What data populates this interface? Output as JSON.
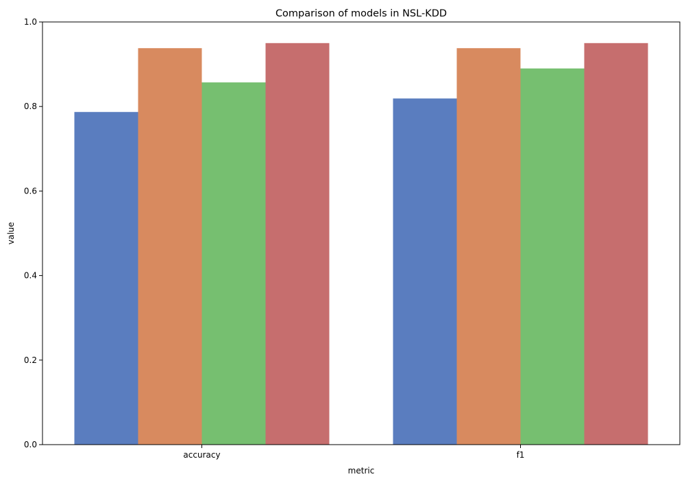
{
  "chart_data": {
    "type": "bar",
    "title": "Comparison of models in NSL-KDD",
    "xlabel": "metric",
    "ylabel": "value",
    "categories": [
      "accuracy",
      "f1"
    ],
    "ylim": [
      0,
      1
    ],
    "yticks": [
      "0.0",
      "0.2",
      "0.4",
      "0.6",
      "0.8",
      "1.0"
    ],
    "grid": false,
    "legend": "none",
    "series": [
      {
        "color": "#5a7dbf",
        "values": [
          0.787,
          0.819
        ]
      },
      {
        "color": "#d88a5f",
        "values": [
          0.938,
          0.938
        ]
      },
      {
        "color": "#76bf70",
        "values": [
          0.857,
          0.89
        ]
      },
      {
        "color": "#c66e6e",
        "values": [
          0.95,
          0.95
        ]
      }
    ]
  }
}
